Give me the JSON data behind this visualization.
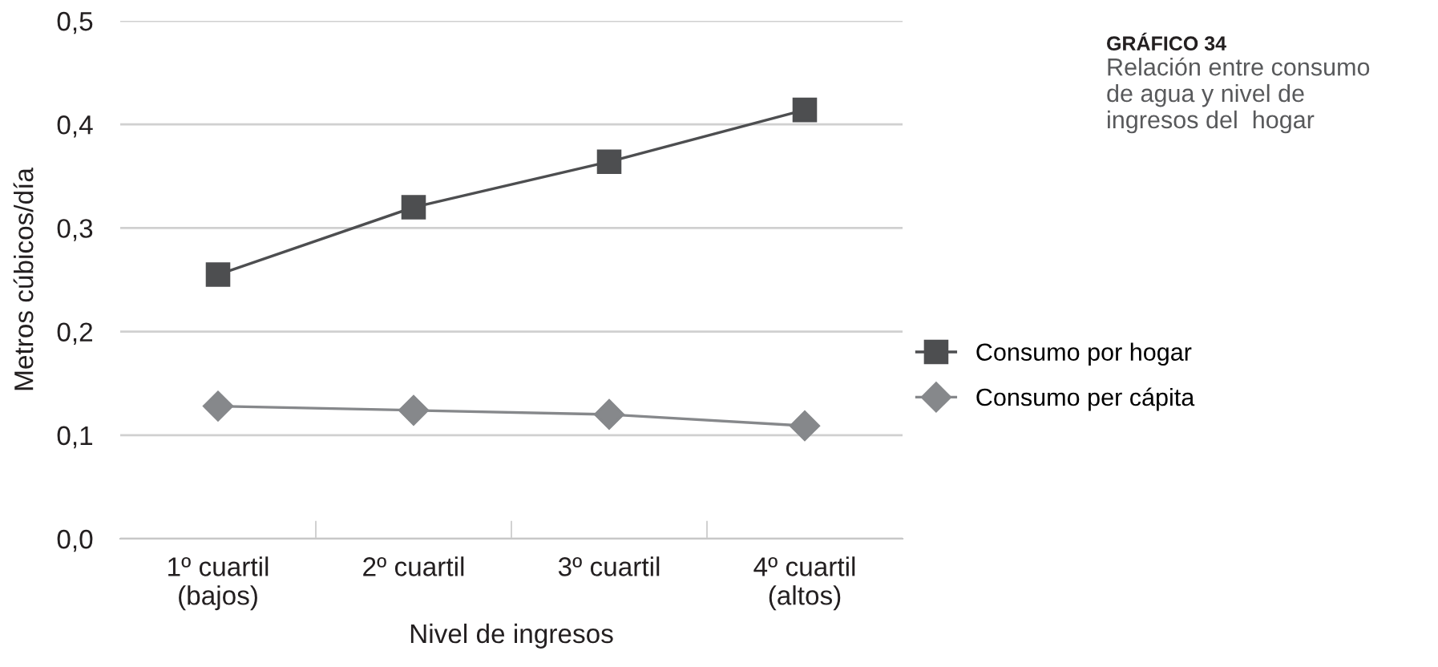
{
  "chart_data": {
    "type": "line",
    "title": "GRÁFICO 34",
    "subtitle": "Relación entre consumo\nde agua y nivel de\ningresos del  hogar",
    "xlabel": "Nivel de ingresos",
    "ylabel": "Metros cúbicos/día",
    "categories": [
      "1º cuartil\n(bajos)",
      "2º cuartil",
      "3º cuartil",
      "4º cuartil\n(altos)"
    ],
    "series": [
      {
        "name": "Consumo por hogar",
        "color": "#4d4e50",
        "marker": "square",
        "values": [
          0.255,
          0.32,
          0.364,
          0.414
        ]
      },
      {
        "name": "Consumo per cápita",
        "color": "#86888b",
        "marker": "diamond",
        "values": [
          0.128,
          0.124,
          0.12,
          0.109
        ]
      }
    ],
    "ylim": [
      0,
      0.5
    ],
    "yticks": [
      {
        "value": 0,
        "label": "0,0"
      },
      {
        "value": 0.1,
        "label": "0,1"
      },
      {
        "value": 0.2,
        "label": "0,2"
      },
      {
        "value": 0.3,
        "label": "0,3"
      },
      {
        "value": 0.4,
        "label": "0,4"
      },
      {
        "value": 0.5,
        "label": "0,5"
      }
    ],
    "grid": "y",
    "legend": "right",
    "line_style": "solid"
  }
}
